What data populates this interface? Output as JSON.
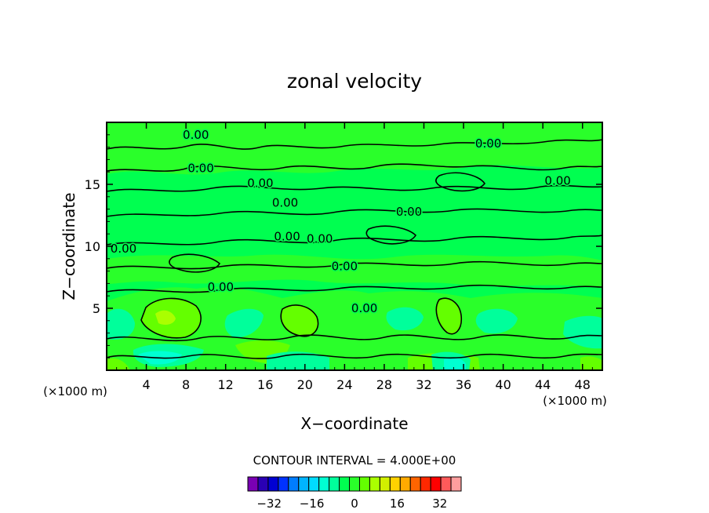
{
  "chart_data": {
    "type": "heatmap",
    "title": "zonal velocity",
    "xlabel": "X−coordinate",
    "ylabel": "Z−coordinate",
    "x_units": "(×1000 m)",
    "y_units": "(×1000 m)",
    "xlim": [
      0,
      50
    ],
    "ylim": [
      0,
      20
    ],
    "x_ticks": [
      4,
      8,
      12,
      16,
      20,
      24,
      28,
      32,
      36,
      40,
      44,
      48
    ],
    "y_ticks": [
      5,
      10,
      15
    ],
    "x_tick_labels": [
      "4",
      "8",
      "12",
      "16",
      "20",
      "24",
      "28",
      "32",
      "36",
      "40",
      "44",
      "48"
    ],
    "y_tick_labels": [
      "5",
      "10",
      "15"
    ],
    "contour_interval_text": "CONTOUR INTERVAL = 4.000E+00",
    "contour_labels": [
      {
        "text": "0.00",
        "x": 9.0,
        "y": 19.0
      },
      {
        "text": "0.00",
        "x": 38.5,
        "y": 18.3
      },
      {
        "text": "0.00",
        "x": 9.5,
        "y": 16.3
      },
      {
        "text": "0.00",
        "x": 15.5,
        "y": 15.1
      },
      {
        "text": "0.00",
        "x": 45.5,
        "y": 15.3
      },
      {
        "text": "0.00",
        "x": 18.0,
        "y": 13.5
      },
      {
        "text": "0.00",
        "x": 30.5,
        "y": 12.8
      },
      {
        "text": "0.00",
        "x": 1.7,
        "y": 9.8
      },
      {
        "text": "0.00",
        "x": 18.2,
        "y": 10.8
      },
      {
        "text": "0.00",
        "x": 21.5,
        "y": 10.6
      },
      {
        "text": "0.00",
        "x": 24.0,
        "y": 8.4
      },
      {
        "text": "0.00",
        "x": 11.5,
        "y": 6.7
      },
      {
        "text": "0.00",
        "x": 26.0,
        "y": 5.0
      }
    ],
    "colorbar": {
      "tick_labels": [
        "−32",
        "−16",
        "0",
        "16",
        "32"
      ],
      "tick_values": [
        -32,
        -16,
        0,
        16,
        32
      ],
      "levels": [
        -40,
        -36,
        -32,
        -28,
        -24,
        -20,
        -16,
        -12,
        -8,
        -4,
        0,
        4,
        8,
        12,
        16,
        20,
        24,
        28,
        32,
        36,
        40
      ],
      "colors": [
        "#7a00b4",
        "#2a00b4",
        "#0000d2",
        "#0032ff",
        "#007dff",
        "#00b4ff",
        "#00dcff",
        "#00ffd2",
        "#00ff9b",
        "#00ff50",
        "#2aff2a",
        "#64ff00",
        "#aaff00",
        "#d2f000",
        "#ffd200",
        "#ffaa00",
        "#ff6400",
        "#ff2800",
        "#ff0000",
        "#ff5a5a",
        "#ff9e9e"
      ]
    },
    "field_colors": {
      "background": "#00ff50",
      "slight_positive": "#2aff2a",
      "positive": "#64ff00",
      "strong_positive": "#aaff00",
      "negative": "#00ff9b",
      "strong_negative": "#00ffd2"
    },
    "grid": false
  }
}
